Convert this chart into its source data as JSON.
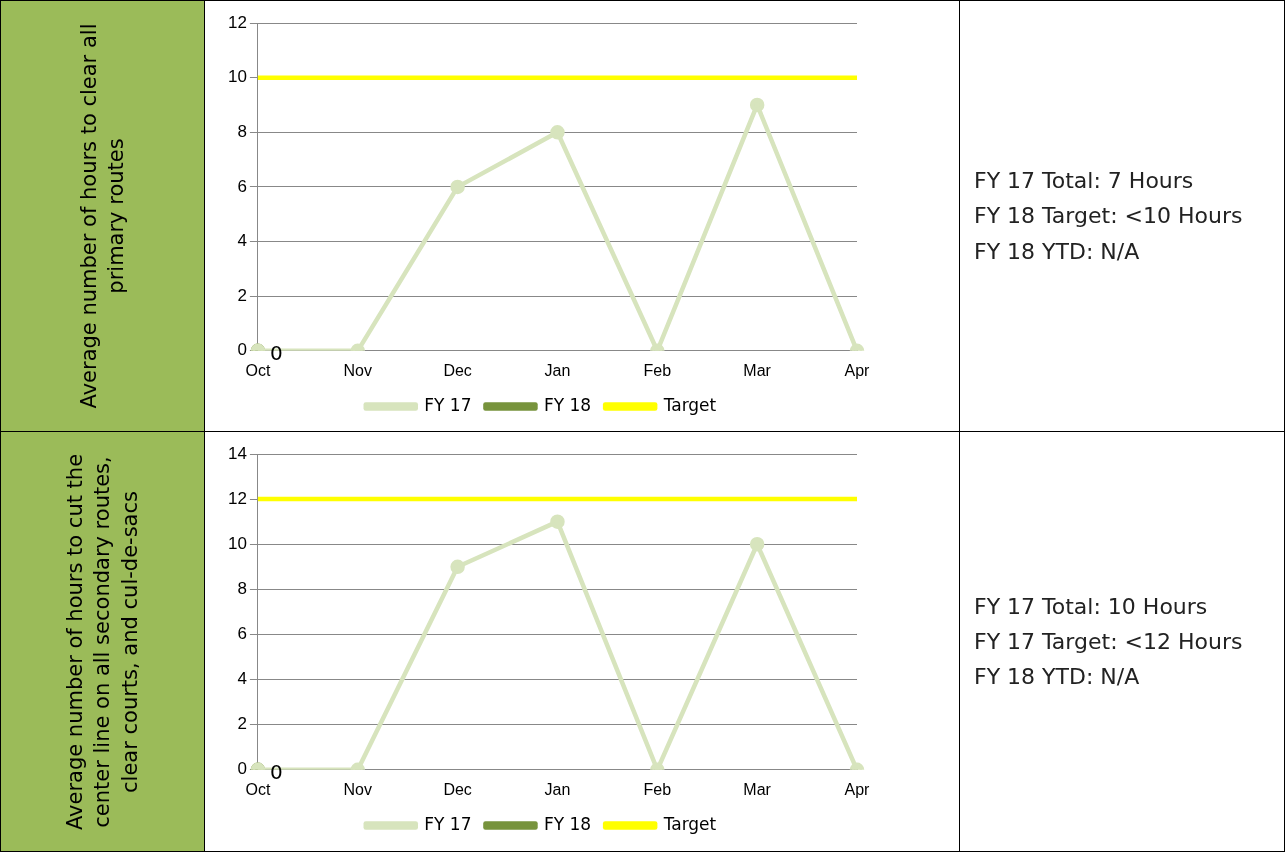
{
  "chart_data": [
    {
      "type": "line",
      "ylabel": "Average number of hours to clear all primary routes",
      "categories": [
        "Oct",
        "Nov",
        "Dec",
        "Jan",
        "Feb",
        "Mar",
        "Apr"
      ],
      "ylim": [
        0,
        12
      ],
      "yticks": [
        0,
        2,
        4,
        6,
        8,
        10,
        12
      ],
      "grid": "y",
      "legend": "bottom",
      "series": [
        {
          "name": "FY 17",
          "color": "#d7e4bd",
          "marker": "circle",
          "values": [
            0,
            0,
            6,
            8,
            0,
            9,
            0
          ]
        },
        {
          "name": "FY 18",
          "color": "#77933c",
          "marker": "circle",
          "values": [
            0,
            null,
            null,
            null,
            null,
            null,
            null
          ],
          "value_labels": [
            "0",
            null,
            null,
            null,
            null,
            null,
            null
          ]
        },
        {
          "name": "Target",
          "color": "#ffff00",
          "marker": "none",
          "values": [
            10,
            10,
            10,
            10,
            10,
            10,
            10
          ]
        }
      ],
      "annotations": [
        "FY 17 Total:  7 Hours",
        "FY 18 Target:  <10 Hours",
        "FY 18 YTD: N/A"
      ]
    },
    {
      "type": "line",
      "ylabel": "Average number of hours to cut the center line on all secondary routes, clear courts, and cul-de-sacs",
      "categories": [
        "Oct",
        "Nov",
        "Dec",
        "Jan",
        "Feb",
        "Mar",
        "Apr"
      ],
      "ylim": [
        0,
        14
      ],
      "yticks": [
        0,
        2,
        4,
        6,
        8,
        10,
        12,
        14
      ],
      "grid": "y",
      "legend": "bottom",
      "series": [
        {
          "name": "FY 17",
          "color": "#d7e4bd",
          "marker": "circle",
          "values": [
            0,
            0,
            9,
            11,
            0,
            10,
            0
          ]
        },
        {
          "name": "FY 18",
          "color": "#77933c",
          "marker": "circle",
          "values": [
            0,
            null,
            null,
            null,
            null,
            null,
            null
          ],
          "value_labels": [
            "0",
            null,
            null,
            null,
            null,
            null,
            null
          ]
        },
        {
          "name": "Target",
          "color": "#ffff00",
          "marker": "none",
          "values": [
            12,
            12,
            12,
            12,
            12,
            12,
            12
          ]
        }
      ],
      "annotations": [
        "FY 17 Total:  10 Hours",
        "FY 17 Target:  <12 Hours",
        "FY 18 YTD:  N/A"
      ]
    }
  ]
}
